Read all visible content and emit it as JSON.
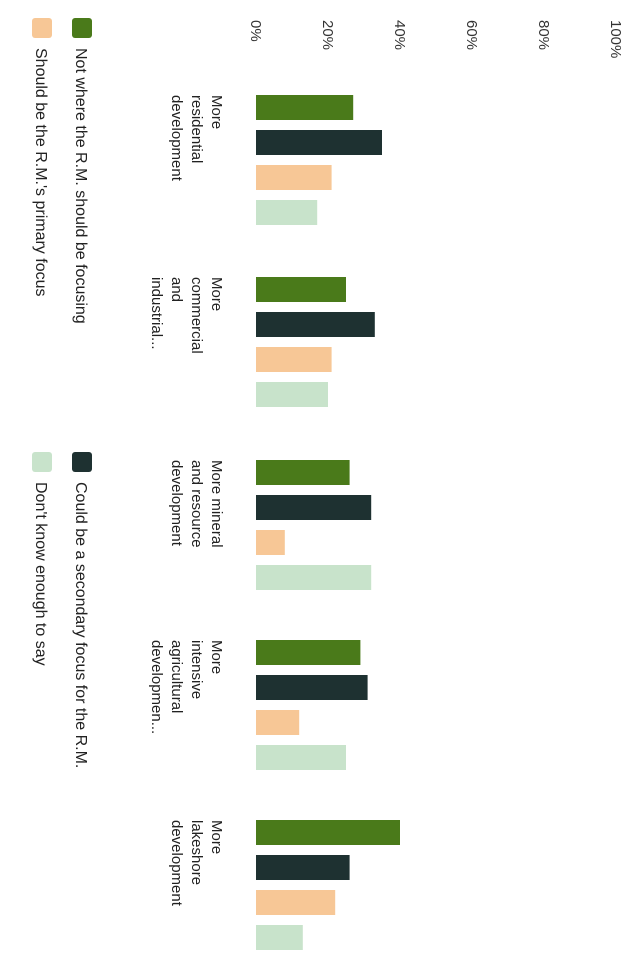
{
  "chart_data": {
    "type": "bar",
    "orientation": "horizontal",
    "rotated": "90deg clockwise",
    "categories": [
      [
        "More",
        "residential",
        "development"
      ],
      [
        "More",
        "commercial",
        "and",
        "industrial..."
      ],
      [
        "More mineral",
        "and resource",
        "development"
      ],
      [
        "More",
        "intensive",
        "agricultural",
        "developmen..."
      ],
      [
        "More",
        "lakeshore",
        "development"
      ]
    ],
    "series": [
      {
        "name": "Not where the R.M. should be focusing",
        "color": "#4a7a1a",
        "values": [
          27,
          25,
          26,
          29,
          40
        ]
      },
      {
        "name": "Could be a secondary focus for the R.M.",
        "color": "#1e3131",
        "values": [
          35,
          33,
          32,
          31,
          26
        ]
      },
      {
        "name": "Should be the R.M.'s primary focus",
        "color": "#f7c796",
        "values": [
          21,
          21,
          8,
          12,
          22
        ]
      },
      {
        "name": "Don't know enough to say",
        "color": "#c8e3cb",
        "values": [
          17,
          20,
          32,
          25,
          13
        ]
      }
    ],
    "xlim": [
      0,
      100
    ],
    "ticks": [
      "0%",
      "20%",
      "40%",
      "60%",
      "80%",
      "100%"
    ],
    "grid": false,
    "legend_position": "bottom"
  }
}
